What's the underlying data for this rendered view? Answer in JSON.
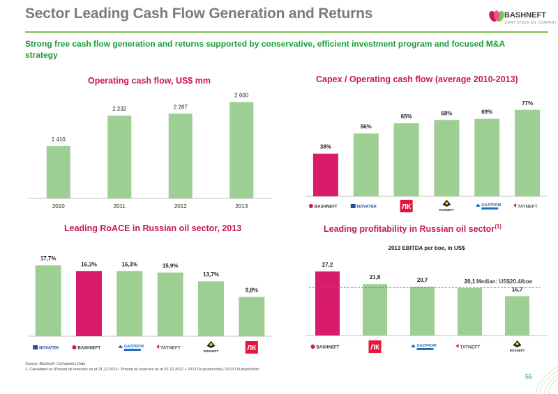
{
  "header": {
    "title": "Sector Leading Cash Flow Generation and Returns",
    "logo_text": "BASHNEFT",
    "logo_sub": "JOINT STOCK OIL COMPANY"
  },
  "subtitle": "Strong free cash flow generation and returns supported by conservative, efficient investment program and focused M&A strategy",
  "colors": {
    "bar_green": "#9ecf92",
    "bar_highlight": "#d81b6a",
    "title_pink": "#c8175d",
    "accent_green": "#1c9a3a",
    "median_line": "#5a6fb5"
  },
  "chart_titles": {
    "ocf": "Operating cash flow, US$ mm",
    "capex": "Capex / Operating cash flow (average 2010-2013)",
    "roace": "Leading RoACE in Russian oil sector, 2013",
    "profit": "Leading profitability in Russian oil sector",
    "profit_sup": "(1)"
  },
  "chart_data": [
    {
      "id": "ocf",
      "type": "bar",
      "title": "Operating cash flow, US$ mm",
      "categories": [
        "2010",
        "2011",
        "2012",
        "2013"
      ],
      "values": [
        1410,
        2232,
        2287,
        2600
      ],
      "data_labels": [
        "1 410",
        "2 232",
        "2 287",
        "2 600"
      ],
      "ylim": [
        0,
        2800
      ],
      "highlight": []
    },
    {
      "id": "capex",
      "type": "bar",
      "title": "Capex / Operating cash flow (average 2010-2013)",
      "categories": [
        "BASHNEFT",
        "NOVATEK",
        "LUKOIL",
        "ROSNEFT",
        "GAZPROM NEFT",
        "TATNEFT"
      ],
      "values": [
        38,
        56,
        65,
        68,
        69,
        77
      ],
      "data_labels": [
        "38%",
        "56%",
        "65%",
        "68%",
        "69%",
        "77%"
      ],
      "ylim": [
        0,
        88
      ],
      "highlight": [
        0
      ]
    },
    {
      "id": "roace",
      "type": "bar",
      "title": "Leading RoACE in Russian oil sector, 2013",
      "categories": [
        "NOVATEK",
        "BASHNEFT",
        "GAZPROM NEFT",
        "TATNEFT",
        "ROSNEFT",
        "LUKOIL"
      ],
      "values": [
        17.7,
        16.3,
        16.3,
        15.9,
        13.7,
        9.8
      ],
      "data_labels": [
        "17,7%",
        "16,3%",
        "16,3%",
        "15,9%",
        "13,7%",
        "9,8%"
      ],
      "ylim": [
        0,
        20
      ],
      "highlight": [
        1
      ]
    },
    {
      "id": "profit",
      "type": "bar",
      "title": "Leading profitability in Russian oil sector",
      "subtitle": "2013 EBITDA per boe, in US$",
      "categories": [
        "BASHNEFT",
        "LUKOIL",
        "GAZPROM NEFT",
        "TATNEFT",
        "ROSNEFT"
      ],
      "values": [
        27.2,
        21.8,
        20.7,
        20.1,
        16.7
      ],
      "data_labels": [
        "27,2",
        "21,8",
        "20,7",
        "20,1",
        "16,7"
      ],
      "median": 20.4,
      "median_label": "Median: US$20.4/boe",
      "ylim": [
        0,
        31
      ],
      "highlight": [
        0
      ]
    }
  ],
  "logos": {
    "BASHNEFT": "BASHNEFT",
    "NOVATEK": "NOVATEK",
    "LUKOIL": "LUKOIL",
    "ROSNEFT": "ROSNEFT",
    "GAZPROM NEFT": "GAZPROM NEFT",
    "TATNEFT": "TATNEFT"
  },
  "footnotes": {
    "source": "Source: Bashneft, Companies Data",
    "note1": "1.    Calculated as (Proved oil reserves as of 31.12.2013 - Proved oil reserves as of 31.12.2012 + 2013 Oil production) / 2013 Oil production."
  },
  "page_number": "55"
}
